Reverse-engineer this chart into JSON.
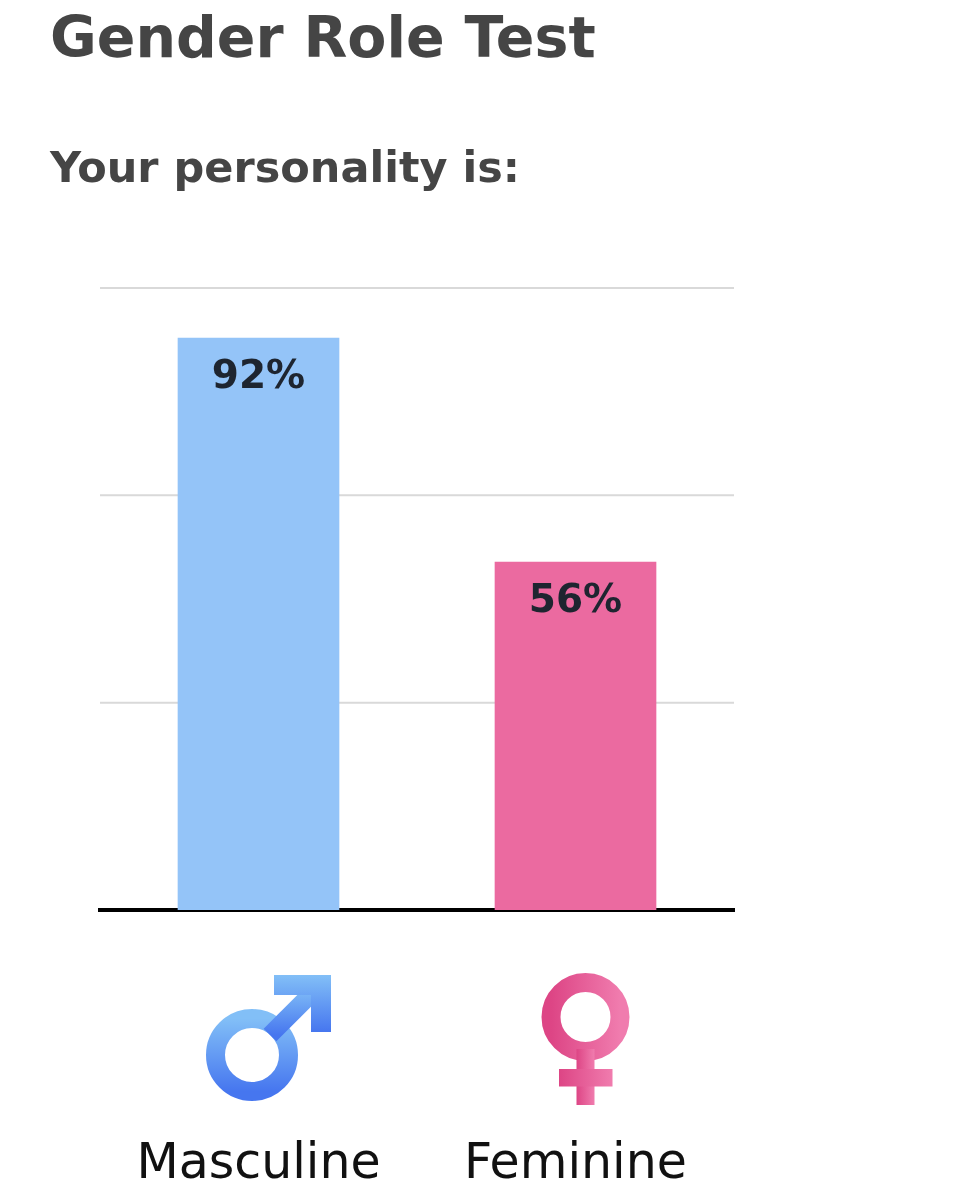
{
  "chart_data": {
    "type": "bar",
    "title": "Gender Role Test",
    "subtitle": "Your personality is:",
    "categories": [
      "Masculine",
      "Feminine"
    ],
    "values": [
      92,
      56
    ],
    "colors": [
      "#94c4f8",
      "#eb6aa0"
    ],
    "value_labels": [
      "92%",
      "56%"
    ],
    "ylim": [
      0,
      100
    ],
    "yticks": [
      {
        "value": 0,
        "label": null
      },
      {
        "value": 33.3,
        "label": null
      },
      {
        "value": 66.7,
        "label": null
      },
      {
        "value": 100,
        "label": null
      }
    ],
    "grid": "y",
    "tick_labels": "x"
  }
}
